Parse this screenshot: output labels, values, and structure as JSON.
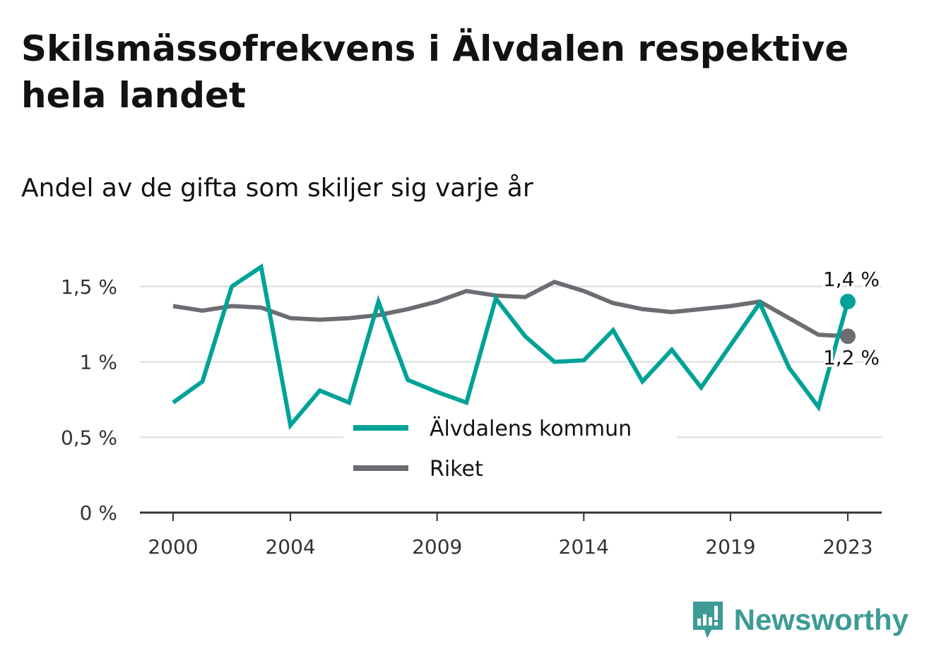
{
  "title": "Skilsmässofrekvens i Älvdalen respektive hela landet",
  "subtitle": "Andel av de gifta som skiljer sig varje år",
  "brand": {
    "name": "Newsworthy",
    "icon": "newsworthy-logo-icon",
    "color": "#3d9b95"
  },
  "chart_data": {
    "type": "line",
    "x": [
      2000,
      2001,
      2002,
      2003,
      2004,
      2005,
      2006,
      2007,
      2008,
      2009,
      2010,
      2011,
      2012,
      2013,
      2014,
      2015,
      2016,
      2017,
      2018,
      2019,
      2020,
      2021,
      2022,
      2023
    ],
    "series": [
      {
        "name": "Älvdalens kommun",
        "color": "#00a298",
        "values": [
          0.73,
          0.87,
          1.5,
          1.63,
          0.58,
          0.81,
          0.73,
          1.4,
          0.88,
          0.8,
          0.73,
          1.42,
          1.17,
          1.0,
          1.01,
          1.21,
          0.87,
          1.08,
          0.83,
          1.11,
          1.39,
          0.96,
          0.7,
          1.4
        ],
        "end_label": "1,4 %"
      },
      {
        "name": "Riket",
        "color": "#6d6c72",
        "values": [
          1.37,
          1.34,
          1.37,
          1.36,
          1.29,
          1.28,
          1.29,
          1.31,
          1.35,
          1.4,
          1.47,
          1.44,
          1.43,
          1.53,
          1.47,
          1.39,
          1.35,
          1.33,
          1.35,
          1.37,
          1.4,
          1.29,
          1.18,
          1.17
        ],
        "end_label": "1,2 %"
      }
    ],
    "x_ticks": [
      {
        "value": 2000,
        "label": "2000"
      },
      {
        "value": 2004,
        "label": "2004"
      },
      {
        "value": 2009,
        "label": "2009"
      },
      {
        "value": 2014,
        "label": "2014"
      },
      {
        "value": 2019,
        "label": "2019"
      },
      {
        "value": 2023,
        "label": "2023"
      }
    ],
    "y_ticks": [
      {
        "value": 0,
        "label": "0 %"
      },
      {
        "value": 0.5,
        "label": "0,5 %"
      },
      {
        "value": 1,
        "label": "1 %"
      },
      {
        "value": 1.5,
        "label": "1,5 %"
      }
    ],
    "xlim": [
      2000,
      2023
    ],
    "ylim": [
      0,
      1.5
    ],
    "grid": true,
    "legend_position": "bottom-center"
  }
}
